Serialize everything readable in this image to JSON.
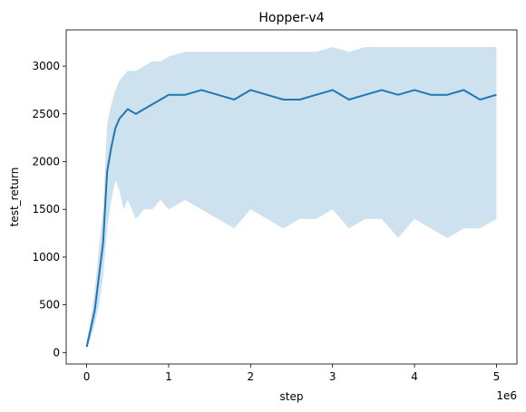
{
  "chart_data": {
    "type": "line",
    "title": "Hopper-v4",
    "xlabel": "step",
    "ylabel": "test_return",
    "x_offset_label": "1e6",
    "xlim": [
      -250000,
      5250000
    ],
    "ylim": [
      -120,
      3380
    ],
    "xticks": [
      0,
      1000000,
      2000000,
      3000000,
      4000000,
      5000000
    ],
    "xtick_labels": [
      "0",
      "1",
      "2",
      "3",
      "4",
      "5"
    ],
    "yticks": [
      0,
      500,
      1000,
      1500,
      2000,
      2500,
      3000
    ],
    "ytick_labels": [
      "0",
      "500",
      "1000",
      "1500",
      "2000",
      "2500",
      "3000"
    ],
    "grid": false,
    "series": [
      {
        "color": "#1f77b4",
        "band_color": "#1f77b4",
        "x": [
          0,
          50000,
          100000,
          150000,
          200000,
          250000,
          300000,
          350000,
          400000,
          450000,
          500000,
          600000,
          700000,
          800000,
          900000,
          1000000,
          1200000,
          1400000,
          1600000,
          1800000,
          2000000,
          2200000,
          2400000,
          2600000,
          2800000,
          3000000,
          3200000,
          3400000,
          3600000,
          3800000,
          4000000,
          4200000,
          4400000,
          4600000,
          4800000,
          5000000
        ],
        "mean": [
          60,
          250,
          450,
          800,
          1150,
          1900,
          2150,
          2350,
          2450,
          2500,
          2550,
          2500,
          2550,
          2600,
          2650,
          2700,
          2700,
          2750,
          2700,
          2650,
          2750,
          2700,
          2650,
          2650,
          2700,
          2750,
          2650,
          2700,
          2750,
          2700,
          2750,
          2700,
          2700,
          2750,
          2650,
          2700
        ],
        "lower": [
          30,
          150,
          300,
          500,
          800,
          1300,
          1600,
          1800,
          1700,
          1500,
          1600,
          1400,
          1500,
          1500,
          1600,
          1500,
          1600,
          1500,
          1400,
          1300,
          1500,
          1400,
          1300,
          1400,
          1400,
          1500,
          1300,
          1400,
          1400,
          1200,
          1400,
          1300,
          1200,
          1300,
          1300,
          1400
        ],
        "upper": [
          120,
          350,
          650,
          1100,
          1500,
          2400,
          2600,
          2750,
          2850,
          2900,
          2950,
          2950,
          3000,
          3050,
          3050,
          3100,
          3150,
          3150,
          3150,
          3150,
          3150,
          3150,
          3150,
          3150,
          3150,
          3200,
          3150,
          3200,
          3200,
          3200,
          3200,
          3200,
          3200,
          3200,
          3200,
          3200
        ]
      }
    ]
  }
}
